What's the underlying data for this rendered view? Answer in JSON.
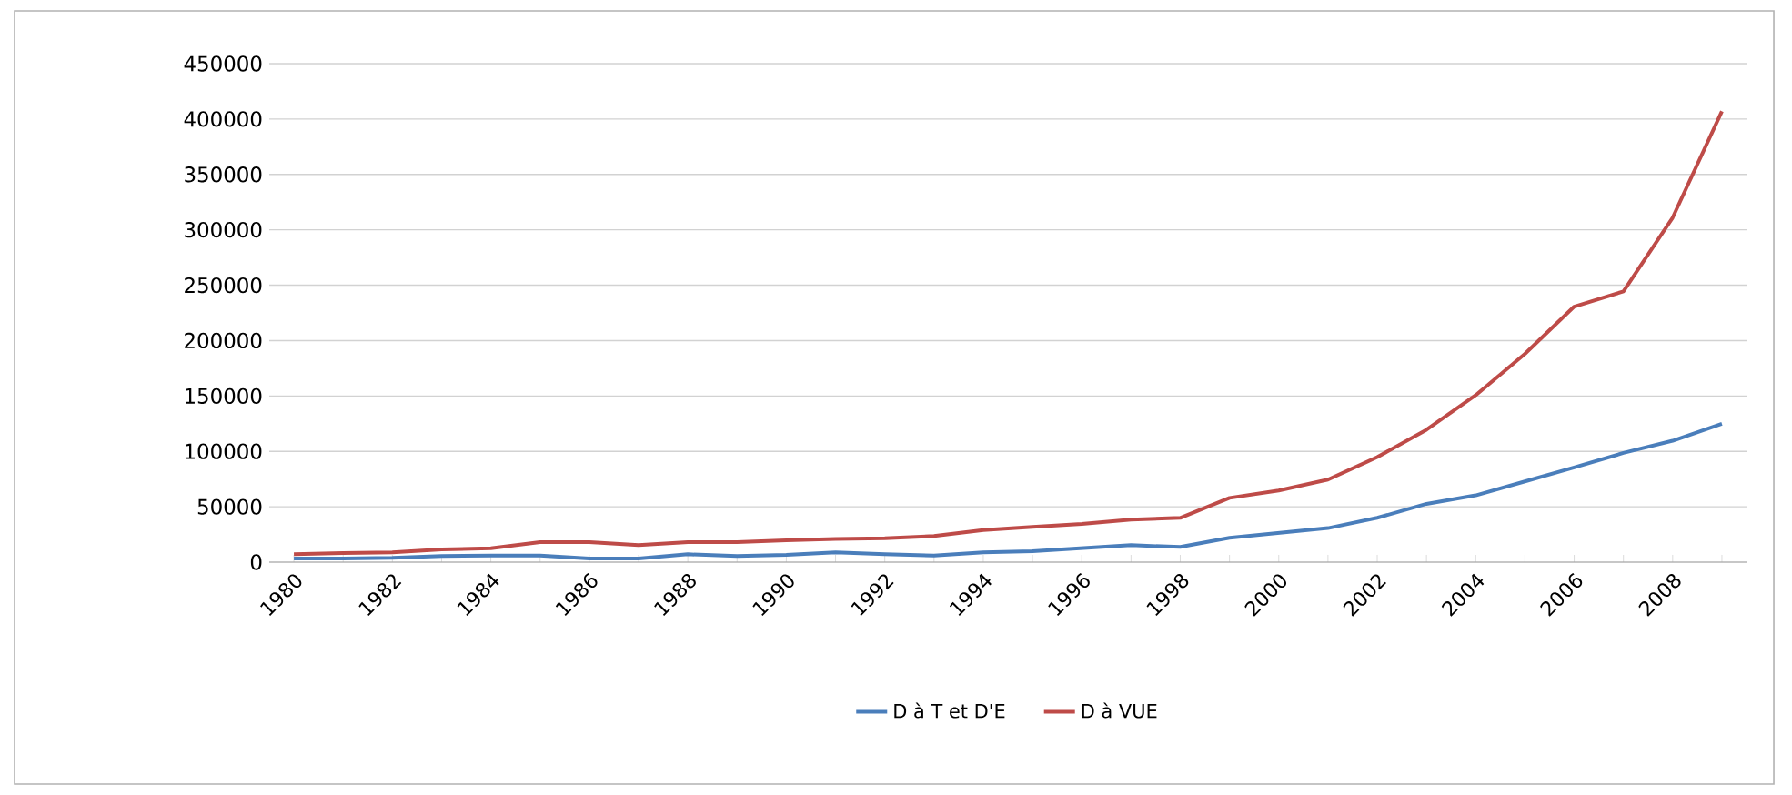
{
  "chart_data": {
    "type": "line",
    "categories": [
      "1980",
      null,
      "1982",
      null,
      "1984",
      null,
      "1986",
      null,
      "1988",
      null,
      "1990",
      null,
      "1992",
      null,
      "1994",
      null,
      "1996",
      null,
      "1998",
      null,
      "2000",
      null,
      "2002",
      null,
      "2004",
      null,
      "2006",
      null,
      "2008",
      null
    ],
    "series": [
      {
        "name": "D à T et D'E",
        "color": "#4a7ebb",
        "values": [
          3300,
          3300,
          3800,
          5500,
          6000,
          6000,
          3300,
          3300,
          7100,
          5500,
          6600,
          8800,
          7100,
          6000,
          8800,
          9900,
          12600,
          15300,
          13700,
          21900,
          26300,
          30700,
          40000,
          52600,
          60300,
          72900,
          85500,
          98600,
          109600,
          125000
        ]
      },
      {
        "name": "D à VUE",
        "color": "#be4b48",
        "values": [
          7100,
          8200,
          8800,
          11500,
          12600,
          18100,
          18100,
          15300,
          18100,
          18100,
          19700,
          21000,
          21500,
          23600,
          29000,
          31800,
          34500,
          38400,
          40000,
          58000,
          64700,
          74500,
          94800,
          119500,
          150700,
          188000,
          230700,
          244400,
          311000,
          407000
        ]
      }
    ],
    "ylim": [
      0,
      450000
    ],
    "yticks": [
      0,
      50000,
      100000,
      150000,
      200000,
      250000,
      300000,
      350000,
      400000,
      450000
    ],
    "grid": "y",
    "legend": "bottom"
  }
}
